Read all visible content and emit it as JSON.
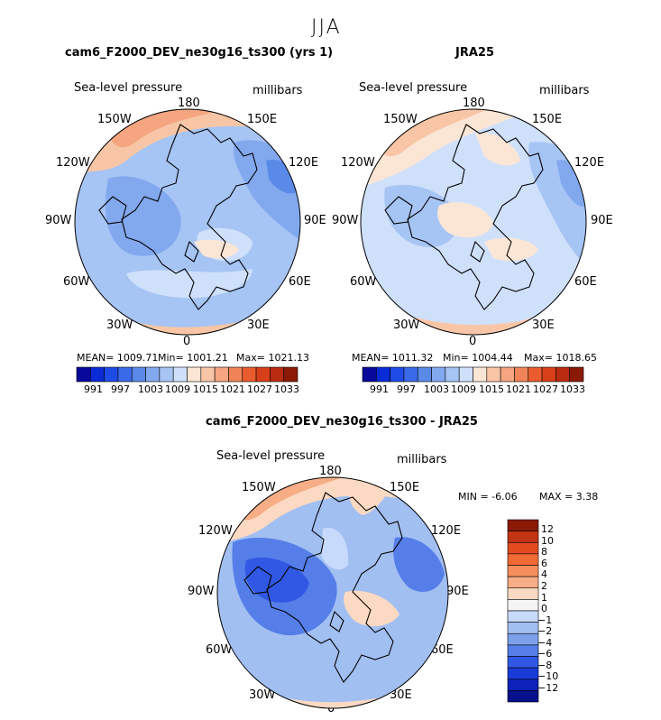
{
  "season": "JJA",
  "variable_label": "Sea-level pressure",
  "units_label": "millibars",
  "lon_labels": [
    "180",
    "150E",
    "120E",
    "90E",
    "60E",
    "30E",
    "0",
    "30W",
    "60W",
    "90W",
    "120W",
    "150W"
  ],
  "panels": [
    {
      "title": "cam6_F2000_DEV_ne30g16_ts300 (yrs 1)",
      "stats": {
        "mean": "MEAN= 1009.71",
        "min": "Min= 1001.21",
        "max": "Max= 1021.13"
      }
    },
    {
      "title": "JRA25",
      "stats": {
        "mean": "MEAN= 1011.32",
        "min": "Min= 1004.44",
        "max": "Max= 1018.65"
      }
    },
    {
      "title": "cam6_F2000_DEV_ne30g16_ts300 - JRA25",
      "stats": {
        "min": "MIN =   -6.06",
        "max": "MAX =    3.38"
      }
    }
  ],
  "colorbar_field": {
    "colors": [
      "#08089a",
      "#0b2bd6",
      "#1f4be6",
      "#3b6ae8",
      "#5a8ae8",
      "#82a8ee",
      "#a6c4f4",
      "#cfe0fb",
      "#fbe6d6",
      "#f8c6a6",
      "#f5a57f",
      "#f08458",
      "#ea5c2f",
      "#d8401a",
      "#b92c10",
      "#8a1a06"
    ],
    "tick_labels": [
      "991",
      "997",
      "1003",
      "1009",
      "1015",
      "1021",
      "1027",
      "1033"
    ]
  },
  "colorbar_diff": {
    "colors": [
      "#8a1a06",
      "#c23412",
      "#e04a1c",
      "#f26a34",
      "#f58e5a",
      "#f7ad86",
      "#fbd9c2",
      "#f4f4f4",
      "#c8dafc",
      "#a2bff2",
      "#7da0ea",
      "#557ee8",
      "#3158e4",
      "#1a3ad8",
      "#0c22b8",
      "#06108a"
    ],
    "tick_labels": [
      "12",
      "10",
      "8",
      "6",
      "4",
      "2",
      "1",
      "0",
      "−1",
      "−2",
      "−4",
      "−6",
      "−8",
      "−10",
      "−12"
    ]
  },
  "chart_data": {
    "type": "polar stereographic map",
    "title": "JJA",
    "series": [
      {
        "name": "cam6_F2000_DEV_ne30g16_ts300 (yrs 1)",
        "mean": 1009.71,
        "min": 1001.21,
        "max": 1021.13
      },
      {
        "name": "JRA25",
        "mean": 1011.32,
        "min": 1004.44,
        "max": 1018.65
      },
      {
        "name": "cam6_F2000_DEV_ne30g16_ts300 - JRA25",
        "min": -6.06,
        "max": 3.38
      }
    ],
    "field_levels": [
      991,
      997,
      1003,
      1009,
      1015,
      1021,
      1027,
      1033
    ],
    "diff_levels": [
      -12,
      -10,
      -8,
      -6,
      -4,
      -2,
      -1,
      0,
      1,
      2,
      4,
      6,
      8,
      10,
      12
    ]
  }
}
